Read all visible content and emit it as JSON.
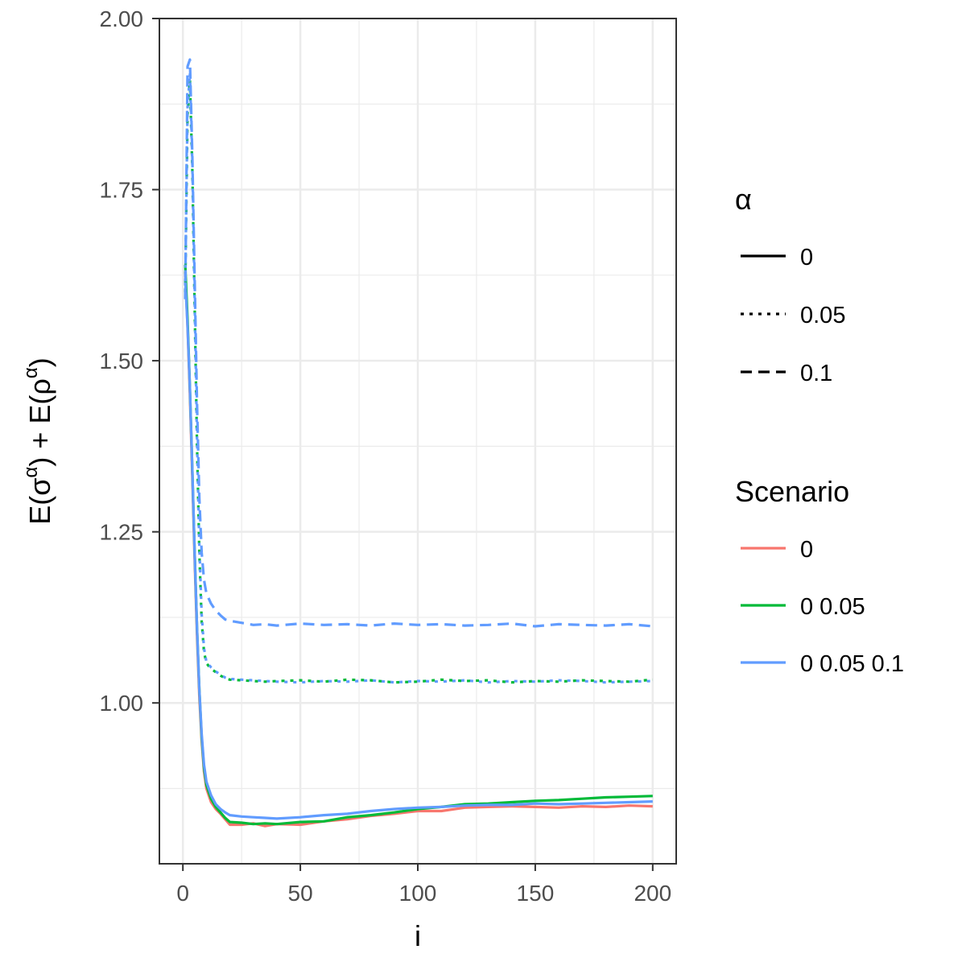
{
  "chart_data": {
    "type": "line",
    "xlabel": "i",
    "ylabel_parts": [
      "E(σ",
      "α",
      ") + E(ρ",
      "α",
      ")"
    ],
    "xlim": [
      -10,
      210
    ],
    "ylim": [
      0.765,
      2.0
    ],
    "xticks": [
      0,
      50,
      100,
      150,
      200
    ],
    "xtick_labels": [
      "0",
      "50",
      "100",
      "150",
      "200"
    ],
    "yticks": [
      1.0,
      1.25,
      1.5,
      1.75,
      2.0
    ],
    "ytick_labels": [
      "1.00",
      "1.25",
      "1.50",
      "1.75",
      "2.00"
    ],
    "grid": true,
    "legend_position": "right",
    "legends": {
      "alpha": {
        "title": "α",
        "entries": [
          {
            "label": "0",
            "dash": "solid"
          },
          {
            "label": "0.05",
            "dash": "dotted"
          },
          {
            "label": "0.1",
            "dash": "dashed"
          }
        ]
      },
      "scenario": {
        "title": "Scenario",
        "entries": [
          {
            "label": "0",
            "color": "#F8766D"
          },
          {
            "label": "0 0.05",
            "color": "#00BA38"
          },
          {
            "label": "0 0.05 0.1",
            "color": "#619CFF"
          }
        ]
      }
    },
    "series": [
      {
        "scenario": "0",
        "alpha": "0",
        "color": "#F8766D",
        "dash": "solid",
        "x": [
          1,
          2,
          3,
          4,
          5,
          6,
          7,
          8,
          9,
          10,
          12,
          14,
          16,
          18,
          20,
          25,
          30,
          35,
          40,
          50,
          60,
          70,
          80,
          90,
          100,
          110,
          120,
          130,
          140,
          150,
          160,
          170,
          180,
          190,
          200
        ],
        "y": [
          1.63,
          1.55,
          1.45,
          1.33,
          1.21,
          1.1,
          1.01,
          0.945,
          0.9,
          0.875,
          0.855,
          0.845,
          0.838,
          0.83,
          0.822,
          0.822,
          0.824,
          0.82,
          0.823,
          0.822,
          0.827,
          0.83,
          0.835,
          0.838,
          0.842,
          0.842,
          0.847,
          0.848,
          0.849,
          0.848,
          0.847,
          0.849,
          0.848,
          0.85,
          0.849
        ]
      },
      {
        "scenario": "0 0.05",
        "alpha": "0",
        "color": "#00BA38",
        "dash": "solid",
        "x": [
          1,
          2,
          3,
          4,
          5,
          6,
          7,
          8,
          9,
          10,
          12,
          14,
          16,
          18,
          20,
          25,
          30,
          35,
          40,
          50,
          60,
          70,
          80,
          90,
          100,
          110,
          120,
          130,
          140,
          150,
          160,
          170,
          180,
          190,
          200
        ],
        "y": [
          1.64,
          1.56,
          1.46,
          1.34,
          1.22,
          1.11,
          1.02,
          0.95,
          0.905,
          0.88,
          0.86,
          0.848,
          0.84,
          0.832,
          0.826,
          0.825,
          0.823,
          0.824,
          0.823,
          0.826,
          0.827,
          0.833,
          0.836,
          0.84,
          0.845,
          0.848,
          0.852,
          0.853,
          0.855,
          0.857,
          0.858,
          0.86,
          0.862,
          0.863,
          0.864
        ]
      },
      {
        "scenario": "0 0.05 0.1",
        "alpha": "0",
        "color": "#619CFF",
        "dash": "solid",
        "x": [
          1,
          2,
          3,
          4,
          5,
          6,
          7,
          8,
          9,
          10,
          12,
          14,
          16,
          18,
          20,
          25,
          30,
          35,
          40,
          50,
          60,
          70,
          80,
          90,
          100,
          110,
          120,
          130,
          140,
          150,
          160,
          170,
          180,
          190,
          200
        ],
        "y": [
          1.62,
          1.55,
          1.46,
          1.34,
          1.22,
          1.11,
          1.02,
          0.955,
          0.91,
          0.885,
          0.865,
          0.852,
          0.845,
          0.84,
          0.836,
          0.834,
          0.833,
          0.832,
          0.831,
          0.833,
          0.836,
          0.838,
          0.842,
          0.845,
          0.847,
          0.848,
          0.85,
          0.851,
          0.851,
          0.853,
          0.852,
          0.853,
          0.854,
          0.855,
          0.856
        ]
      },
      {
        "scenario": "0 0.05",
        "alpha": "0.05",
        "color": "#00BA38",
        "dash": "dotted",
        "x": [
          1,
          2,
          3,
          4,
          5,
          6,
          7,
          8,
          9,
          10,
          12,
          14,
          16,
          18,
          20,
          25,
          30,
          35,
          40,
          50,
          60,
          70,
          80,
          90,
          100,
          110,
          120,
          130,
          140,
          150,
          160,
          170,
          180,
          190,
          200
        ],
        "y": [
          1.6,
          1.86,
          1.91,
          1.78,
          1.58,
          1.38,
          1.22,
          1.12,
          1.075,
          1.058,
          1.05,
          1.045,
          1.04,
          1.036,
          1.034,
          1.033,
          1.032,
          1.031,
          1.032,
          1.033,
          1.031,
          1.034,
          1.033,
          1.03,
          1.031,
          1.034,
          1.032,
          1.033,
          1.03,
          1.032,
          1.031,
          1.033,
          1.032,
          1.031,
          1.034
        ]
      },
      {
        "scenario": "0 0.05 0.1",
        "alpha": "0.05",
        "color": "#619CFF",
        "dash": "dotted",
        "x": [
          1,
          2,
          3,
          4,
          5,
          6,
          7,
          8,
          9,
          10,
          12,
          14,
          16,
          18,
          20,
          25,
          30,
          35,
          40,
          50,
          60,
          70,
          80,
          90,
          100,
          110,
          120,
          130,
          140,
          150,
          160,
          170,
          180,
          190,
          200
        ],
        "y": [
          1.61,
          1.87,
          1.92,
          1.79,
          1.59,
          1.39,
          1.23,
          1.13,
          1.08,
          1.06,
          1.052,
          1.046,
          1.041,
          1.037,
          1.035,
          1.034,
          1.033,
          1.032,
          1.031,
          1.03,
          1.032,
          1.031,
          1.033,
          1.03,
          1.032,
          1.031,
          1.033,
          1.03,
          1.032,
          1.031,
          1.033,
          1.032,
          1.03,
          1.031,
          1.032
        ]
      },
      {
        "scenario": "0 0.05 0.1",
        "alpha": "0.1",
        "color": "#619CFF",
        "dash": "dashed",
        "x": [
          1,
          2,
          3,
          4,
          5,
          6,
          7,
          8,
          9,
          10,
          12,
          14,
          16,
          18,
          20,
          25,
          30,
          35,
          40,
          50,
          60,
          70,
          80,
          90,
          100,
          110,
          120,
          130,
          140,
          150,
          160,
          170,
          180,
          190,
          200
        ],
        "y": [
          1.59,
          1.93,
          1.94,
          1.8,
          1.62,
          1.44,
          1.3,
          1.22,
          1.18,
          1.16,
          1.145,
          1.135,
          1.128,
          1.122,
          1.12,
          1.117,
          1.114,
          1.115,
          1.113,
          1.116,
          1.114,
          1.115,
          1.113,
          1.116,
          1.114,
          1.115,
          1.113,
          1.114,
          1.116,
          1.112,
          1.115,
          1.114,
          1.113,
          1.115,
          1.112
        ]
      }
    ]
  }
}
